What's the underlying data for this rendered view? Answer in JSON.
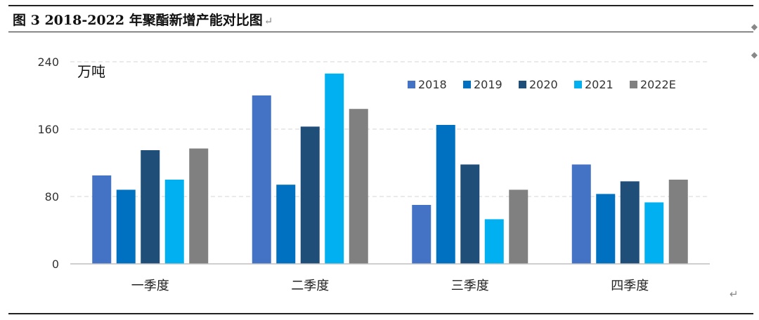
{
  "caption": "图 3  2018-2022 年聚酯新增产能对比图",
  "chart_data": {
    "type": "bar",
    "unit_label": "万吨",
    "categories": [
      "一季度",
      "二季度",
      "三季度",
      "四季度"
    ],
    "ylim": [
      0,
      240
    ],
    "yticks": [
      0,
      80,
      160,
      240
    ],
    "grid": true,
    "legend_position": "top-right",
    "series": [
      {
        "name": "2018",
        "color": "#4472C4",
        "values": [
          105,
          200,
          70,
          118
        ]
      },
      {
        "name": "2019",
        "color": "#0070C0",
        "values": [
          88,
          94,
          165,
          83
        ]
      },
      {
        "name": "2020",
        "color": "#1F4E79",
        "values": [
          135,
          163,
          118,
          98
        ]
      },
      {
        "name": "2021",
        "color": "#00B0F0",
        "values": [
          100,
          226,
          53,
          73
        ]
      },
      {
        "name": "2022E",
        "color": "#808080",
        "values": [
          137,
          184,
          88,
          100
        ]
      }
    ]
  }
}
